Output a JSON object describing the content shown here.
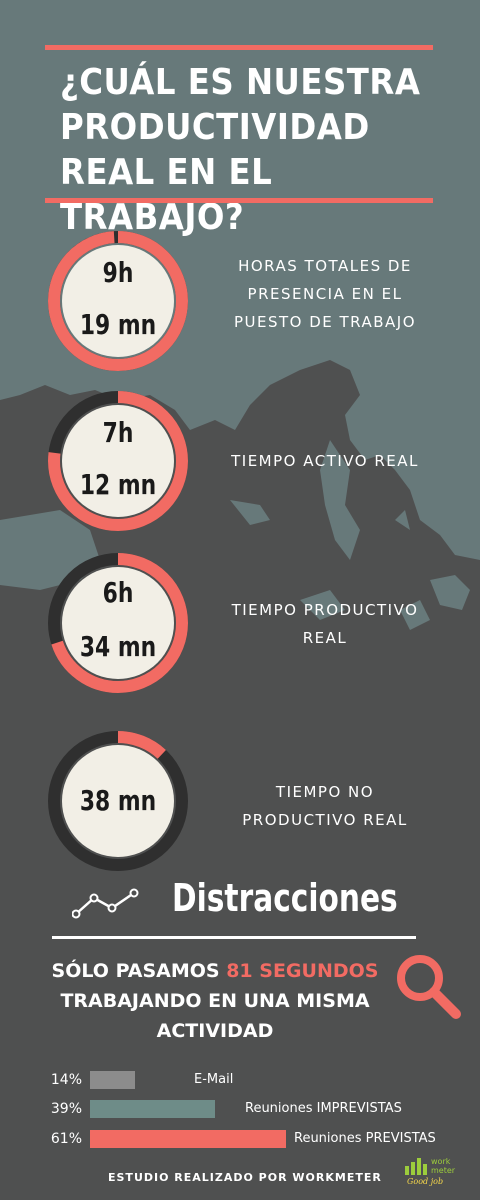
{
  "title": "¿CUÁL ES NUESTRA PRODUCTIVIDAD REAL EN EL TRABAJO?",
  "colors": {
    "accent": "#f26b63",
    "background": "#4f5050",
    "map_land": "#67797a",
    "ring_fill": "#f2efe6",
    "ring_track": "#2f2f2f",
    "bar_email": "#8c8c8c",
    "bar_imprevistas": "#6e8c88",
    "bar_previstas": "#f26b63"
  },
  "stats": [
    {
      "line1": "9h",
      "line2": "19 mn",
      "label": "HORAS TOTALES DE PRESENCIA EN EL PUESTO DE TRABAJO",
      "progress": 0.99
    },
    {
      "line1": "7h",
      "line2": "12 mn",
      "label": "TIEMPO ACTIVO REAL",
      "progress": 0.77
    },
    {
      "line1": "6h",
      "line2": "34 mn",
      "label": "TIEMPO PRODUCTIVO REAL",
      "progress": 0.7
    },
    {
      "line1": "38 mn",
      "line2": "",
      "label": "TIEMPO NO PRODUCTIVO REAL",
      "progress": 0.12
    }
  ],
  "distractions": {
    "title": "Distracciones",
    "icon": "trend-line-icon",
    "search_icon": "magnifier-icon",
    "summary_before": "SÓLO PASAMOS ",
    "summary_highlight": "81 SEGUNDOS",
    "summary_after": "TRABAJANDO EN UNA MISMA ACTIVIDAD",
    "items": [
      {
        "pct": "14%",
        "label": "E-Mail",
        "value": 14
      },
      {
        "pct": "39%",
        "label": "Reuniones IMPREVISTAS",
        "value": 39
      },
      {
        "pct": "61%",
        "label": "Reuniones PREVISTAS",
        "value": 61
      }
    ]
  },
  "footer": "ESTUDIO REALIZADO POR WORKMETER",
  "logo": {
    "word1": "work",
    "word2": "meter",
    "tagline": "Good job"
  }
}
